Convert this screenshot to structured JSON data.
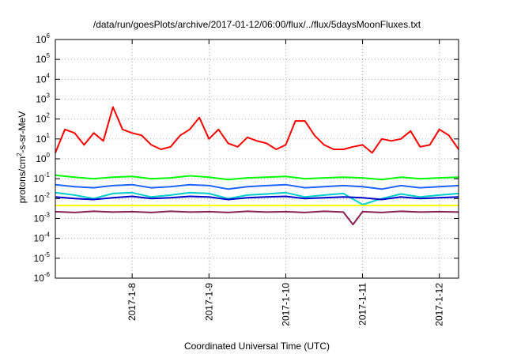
{
  "chart_data": {
    "type": "line",
    "title": "/data/run/goesPlots/archive/2017-01-12/06:00/flux/../flux/5daysMoonFluxes.txt",
    "xlabel": "Coordinated Universal Time (UTC)",
    "ylabel": {
      "prefix": "protons/cm",
      "sup": "2",
      "suffix": "-s-sr-MeV"
    },
    "yscale": "log",
    "ylim": [
      1e-06,
      1000000.0
    ],
    "y_ticks": [
      {
        "base": "10",
        "exp": "-6",
        "value": 1e-06
      },
      {
        "base": "10",
        "exp": "-5",
        "value": 1e-05
      },
      {
        "base": "10",
        "exp": "-4",
        "value": 0.0001
      },
      {
        "base": "10",
        "exp": "-3",
        "value": 0.001
      },
      {
        "base": "10",
        "exp": "-2",
        "value": 0.01
      },
      {
        "base": "10",
        "exp": "-1",
        "value": 0.1
      },
      {
        "base": "10",
        "exp": "0",
        "value": 1
      },
      {
        "base": "10",
        "exp": "1",
        "value": 10
      },
      {
        "base": "10",
        "exp": "2",
        "value": 100
      },
      {
        "base": "10",
        "exp": "3",
        "value": 1000
      },
      {
        "base": "10",
        "exp": "4",
        "value": 10000
      },
      {
        "base": "10",
        "exp": "5",
        "value": 100000
      },
      {
        "base": "10",
        "exp": "6",
        "value": 1000000
      }
    ],
    "xlim": [
      "2017-01-07T00:00",
      "2017-01-12T06:00"
    ],
    "x_ticks": [
      "2017-1-8",
      "2017-1-9",
      "2017-1-10",
      "2017-1-11",
      "2017-1-12"
    ],
    "x_tick_values": [
      "2017-01-08T00:00",
      "2017-01-09T00:00",
      "2017-01-10T00:00",
      "2017-01-11T00:00",
      "2017-01-12T00:00"
    ],
    "grid": true,
    "legend": "none",
    "series": [
      {
        "color": "#ff0000",
        "x": [
          "2017-01-07T00:00",
          "2017-01-07T03:00",
          "2017-01-07T06:00",
          "2017-01-07T09:00",
          "2017-01-07T12:00",
          "2017-01-07T15:00",
          "2017-01-07T18:00",
          "2017-01-07T21:00",
          "2017-01-08T00:00",
          "2017-01-08T03:00",
          "2017-01-08T06:00",
          "2017-01-08T09:00",
          "2017-01-08T12:00",
          "2017-01-08T15:00",
          "2017-01-08T18:00",
          "2017-01-08T21:00",
          "2017-01-09T00:00",
          "2017-01-09T03:00",
          "2017-01-09T06:00",
          "2017-01-09T09:00",
          "2017-01-09T12:00",
          "2017-01-09T15:00",
          "2017-01-09T18:00",
          "2017-01-09T21:00",
          "2017-01-10T00:00",
          "2017-01-10T03:00",
          "2017-01-10T06:00",
          "2017-01-10T09:00",
          "2017-01-10T12:00",
          "2017-01-10T15:00",
          "2017-01-10T18:00",
          "2017-01-10T21:00",
          "2017-01-11T00:00",
          "2017-01-11T03:00",
          "2017-01-11T06:00",
          "2017-01-11T09:00",
          "2017-01-11T12:00",
          "2017-01-11T15:00",
          "2017-01-11T18:00",
          "2017-01-11T21:00",
          "2017-01-12T00:00",
          "2017-01-12T03:00",
          "2017-01-12T06:00"
        ],
        "values": [
          2,
          30,
          20,
          5,
          20,
          8,
          400,
          30,
          20,
          15,
          5,
          3,
          4,
          15,
          30,
          120,
          10,
          30,
          6,
          4,
          12,
          8,
          6,
          3,
          5,
          80,
          80,
          15,
          5,
          3,
          3,
          4,
          5,
          2,
          10,
          8,
          10,
          25,
          4,
          5,
          30,
          15,
          3
        ]
      },
      {
        "color": "#00ff00",
        "x": [
          "2017-01-07T00:00",
          "2017-01-07T06:00",
          "2017-01-07T12:00",
          "2017-01-07T18:00",
          "2017-01-08T00:00",
          "2017-01-08T06:00",
          "2017-01-08T12:00",
          "2017-01-08T18:00",
          "2017-01-09T00:00",
          "2017-01-09T06:00",
          "2017-01-09T12:00",
          "2017-01-09T18:00",
          "2017-01-10T00:00",
          "2017-01-10T06:00",
          "2017-01-10T12:00",
          "2017-01-10T18:00",
          "2017-01-11T00:00",
          "2017-01-11T06:00",
          "2017-01-11T12:00",
          "2017-01-11T18:00",
          "2017-01-12T00:00",
          "2017-01-12T06:00"
        ],
        "values": [
          0.15,
          0.12,
          0.1,
          0.12,
          0.13,
          0.1,
          0.11,
          0.14,
          0.12,
          0.09,
          0.11,
          0.12,
          0.13,
          0.1,
          0.11,
          0.12,
          0.11,
          0.09,
          0.12,
          0.1,
          0.11,
          0.12
        ]
      },
      {
        "color": "#1e64ff",
        "x": [
          "2017-01-07T00:00",
          "2017-01-07T06:00",
          "2017-01-07T12:00",
          "2017-01-07T18:00",
          "2017-01-08T00:00",
          "2017-01-08T06:00",
          "2017-01-08T12:00",
          "2017-01-08T18:00",
          "2017-01-09T00:00",
          "2017-01-09T06:00",
          "2017-01-09T12:00",
          "2017-01-09T18:00",
          "2017-01-10T00:00",
          "2017-01-10T06:00",
          "2017-01-10T12:00",
          "2017-01-10T18:00",
          "2017-01-11T00:00",
          "2017-01-11T06:00",
          "2017-01-11T12:00",
          "2017-01-11T18:00",
          "2017-01-12T00:00",
          "2017-01-12T06:00"
        ],
        "values": [
          0.05,
          0.04,
          0.035,
          0.045,
          0.05,
          0.035,
          0.04,
          0.05,
          0.045,
          0.03,
          0.04,
          0.045,
          0.05,
          0.035,
          0.04,
          0.045,
          0.04,
          0.03,
          0.045,
          0.035,
          0.04,
          0.045
        ]
      },
      {
        "color": "#00cccc",
        "x": [
          "2017-01-07T00:00",
          "2017-01-07T06:00",
          "2017-01-07T12:00",
          "2017-01-07T18:00",
          "2017-01-08T00:00",
          "2017-01-08T06:00",
          "2017-01-08T12:00",
          "2017-01-08T18:00",
          "2017-01-09T00:00",
          "2017-01-09T06:00",
          "2017-01-09T12:00",
          "2017-01-09T18:00",
          "2017-01-10T00:00",
          "2017-01-10T06:00",
          "2017-01-10T12:00",
          "2017-01-10T18:00",
          "2017-01-11T00:00",
          "2017-01-11T06:00",
          "2017-01-11T12:00",
          "2017-01-11T18:00",
          "2017-01-12T00:00",
          "2017-01-12T06:00"
        ],
        "values": [
          0.02,
          0.015,
          0.01,
          0.018,
          0.02,
          0.012,
          0.015,
          0.02,
          0.018,
          0.01,
          0.015,
          0.017,
          0.02,
          0.012,
          0.015,
          0.018,
          0.005,
          0.01,
          0.017,
          0.012,
          0.015,
          0.018
        ]
      },
      {
        "color": "#0000cc",
        "x": [
          "2017-01-07T00:00",
          "2017-01-07T06:00",
          "2017-01-07T12:00",
          "2017-01-07T18:00",
          "2017-01-08T00:00",
          "2017-01-08T06:00",
          "2017-01-08T12:00",
          "2017-01-08T18:00",
          "2017-01-09T00:00",
          "2017-01-09T06:00",
          "2017-01-09T12:00",
          "2017-01-09T18:00",
          "2017-01-10T00:00",
          "2017-01-10T06:00",
          "2017-01-10T12:00",
          "2017-01-10T18:00",
          "2017-01-11T00:00",
          "2017-01-11T06:00",
          "2017-01-11T12:00",
          "2017-01-11T18:00",
          "2017-01-12T00:00",
          "2017-01-12T06:00"
        ],
        "values": [
          0.012,
          0.01,
          0.009,
          0.011,
          0.013,
          0.01,
          0.011,
          0.013,
          0.012,
          0.009,
          0.011,
          0.012,
          0.013,
          0.01,
          0.011,
          0.012,
          0.011,
          0.009,
          0.012,
          0.01,
          0.011,
          0.012
        ]
      },
      {
        "color": "#ffff00",
        "x": [
          "2017-01-07T00:00",
          "2017-01-08T00:00",
          "2017-01-09T00:00",
          "2017-01-10T00:00",
          "2017-01-11T00:00",
          "2017-01-12T00:00",
          "2017-01-12T06:00"
        ],
        "values": [
          0.0045,
          0.0045,
          0.0045,
          0.0045,
          0.0045,
          0.0045,
          0.0045
        ]
      },
      {
        "color": "#882255",
        "x": [
          "2017-01-07T00:00",
          "2017-01-07T06:00",
          "2017-01-07T12:00",
          "2017-01-07T18:00",
          "2017-01-08T00:00",
          "2017-01-08T06:00",
          "2017-01-08T12:00",
          "2017-01-08T18:00",
          "2017-01-09T00:00",
          "2017-01-09T06:00",
          "2017-01-09T12:00",
          "2017-01-09T18:00",
          "2017-01-10T00:00",
          "2017-01-10T06:00",
          "2017-01-10T12:00",
          "2017-01-10T18:00",
          "2017-01-10T21:00",
          "2017-01-11T00:00",
          "2017-01-11T06:00",
          "2017-01-11T12:00",
          "2017-01-11T18:00",
          "2017-01-12T00:00",
          "2017-01-12T06:00"
        ],
        "values": [
          0.0022,
          0.002,
          0.0023,
          0.0021,
          0.0022,
          0.002,
          0.0023,
          0.0021,
          0.0022,
          0.002,
          0.0023,
          0.0021,
          0.0022,
          0.002,
          0.0023,
          0.0021,
          0.0005,
          0.0022,
          0.002,
          0.0023,
          0.0021,
          0.0022,
          0.0021
        ]
      }
    ]
  }
}
